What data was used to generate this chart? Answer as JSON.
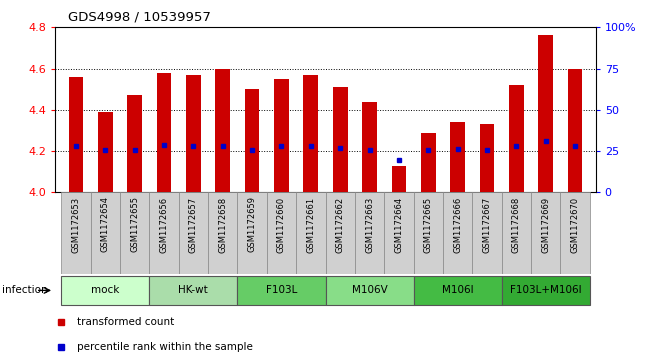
{
  "title": "GDS4998 / 10539957",
  "samples": [
    "GSM1172653",
    "GSM1172654",
    "GSM1172655",
    "GSM1172656",
    "GSM1172657",
    "GSM1172658",
    "GSM1172659",
    "GSM1172660",
    "GSM1172661",
    "GSM1172662",
    "GSM1172663",
    "GSM1172664",
    "GSM1172665",
    "GSM1172666",
    "GSM1172667",
    "GSM1172668",
    "GSM1172669",
    "GSM1172670"
  ],
  "bar_tops": [
    4.56,
    4.39,
    4.47,
    4.58,
    4.57,
    4.6,
    4.5,
    4.55,
    4.57,
    4.51,
    4.44,
    4.13,
    4.29,
    4.34,
    4.33,
    4.52,
    4.76,
    4.6
  ],
  "percentile_values": [
    4.225,
    4.205,
    4.205,
    4.23,
    4.225,
    4.225,
    4.205,
    4.225,
    4.225,
    4.215,
    4.205,
    4.155,
    4.205,
    4.21,
    4.205,
    4.225,
    4.25,
    4.225
  ],
  "bar_color": "#cc0000",
  "dot_color": "#0000cc",
  "ylim_left": [
    4.0,
    4.8
  ],
  "ylim_right": [
    0,
    100
  ],
  "yticks_left": [
    4.0,
    4.2,
    4.4,
    4.6,
    4.8
  ],
  "yticks_right": [
    0,
    25,
    50,
    75,
    100
  ],
  "ytick_labels_right": [
    "0",
    "25",
    "50",
    "75",
    "100%"
  ],
  "dotted_lines": [
    4.2,
    4.4,
    4.6
  ],
  "groups": [
    {
      "label": "mock",
      "start": 0,
      "end": 3,
      "color": "#ccffcc"
    },
    {
      "label": "HK-wt",
      "start": 3,
      "end": 6,
      "color": "#aaddaa"
    },
    {
      "label": "F103L",
      "start": 6,
      "end": 9,
      "color": "#66cc66"
    },
    {
      "label": "M106V",
      "start": 9,
      "end": 12,
      "color": "#88dd88"
    },
    {
      "label": "M106I",
      "start": 12,
      "end": 15,
      "color": "#44bb44"
    },
    {
      "label": "F103L+M106I",
      "start": 15,
      "end": 18,
      "color": "#33aa33"
    }
  ],
  "legend_items": [
    {
      "label": "transformed count",
      "color": "#cc0000"
    },
    {
      "label": "percentile rank within the sample",
      "color": "#0000cc"
    }
  ],
  "bar_width": 0.5,
  "figsize": [
    6.51,
    3.63
  ],
  "dpi": 100
}
